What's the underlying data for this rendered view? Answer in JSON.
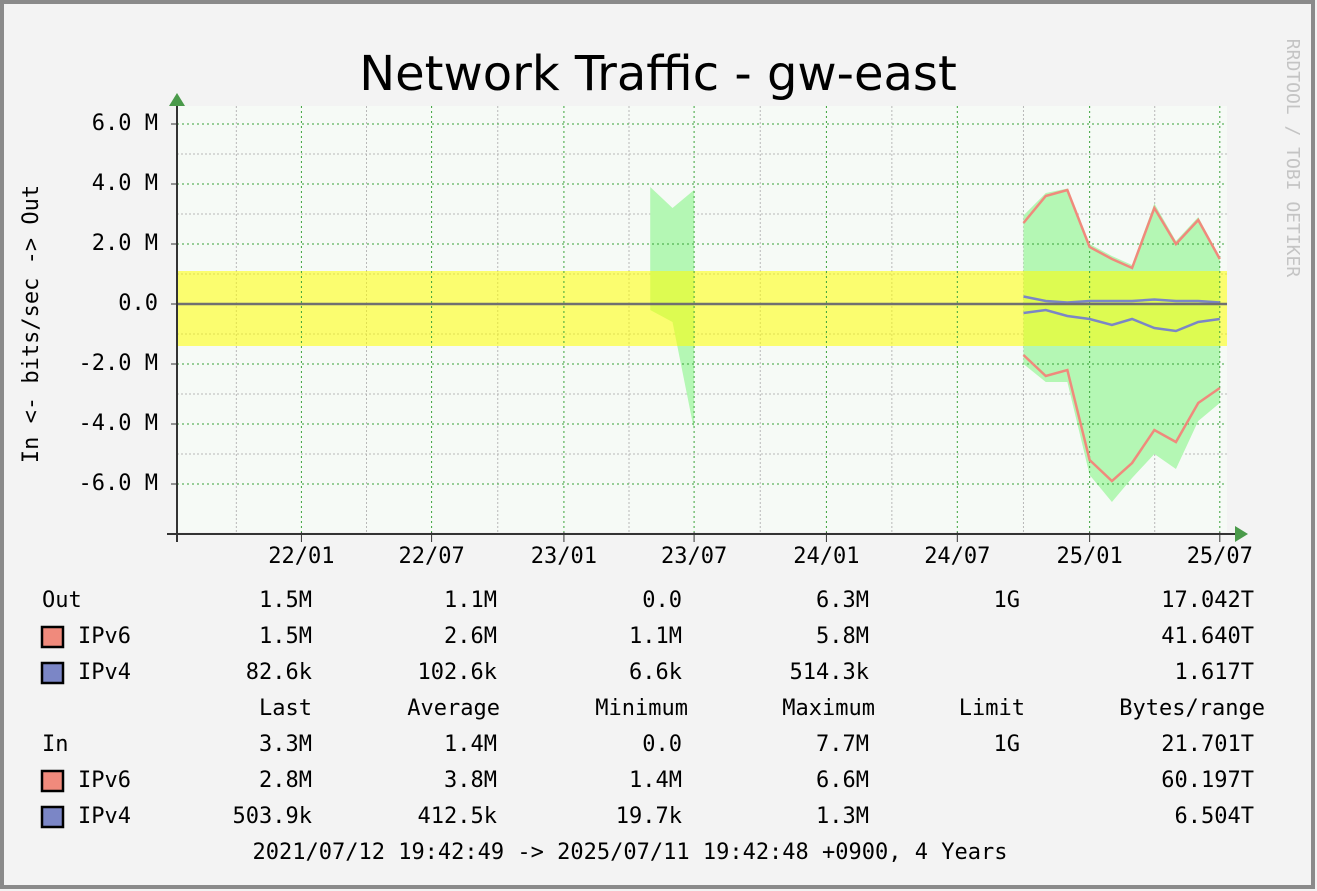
{
  "chart_data": {
    "type": "line",
    "title": "Network Traffic - gw-east",
    "y_label": "In <- bits/sec -> Out",
    "watermark": "RRDTOOL / TOBI OETIKER",
    "x": [
      "23/05",
      "23/06",
      "23/07",
      "24/09",
      "24/10",
      "24/11",
      "24/12",
      "25/01",
      "25/02",
      "25/03",
      "25/04",
      "25/05",
      "25/06",
      "25/07"
    ],
    "xlim": [
      "2021-07-12",
      "2025-07-11"
    ],
    "xticks": [
      "22/01",
      "22/07",
      "23/01",
      "23/07",
      "24/01",
      "24/07",
      "25/01",
      "25/07"
    ],
    "ylim": [
      -7.6,
      6.6
    ],
    "yticks": [
      {
        "value": 6,
        "label": "6.0 M"
      },
      {
        "value": 4,
        "label": "4.0 M"
      },
      {
        "value": 2,
        "label": "2.0 M"
      },
      {
        "value": 0,
        "label": "0.0"
      },
      {
        "value": -2,
        "label": "-2.0 M"
      },
      {
        "value": -4,
        "label": "-4.0 M"
      },
      {
        "value": -6,
        "label": "-6.0 M"
      }
    ],
    "grid": true,
    "average_band": {
      "values": [
        -1.4,
        1.1
      ],
      "color": "#ffff00"
    },
    "series": [
      {
        "name": "IPv6",
        "kind": "line",
        "color": "#f08a7c",
        "values": [
          null,
          null,
          null,
          null,
          2.7,
          3.6,
          3.8,
          1.9,
          1.5,
          1.2,
          3.2,
          2.0,
          2.8,
          1.5
        ]
      },
      {
        "name": "IPv4",
        "kind": "line",
        "color": "#7b86c6",
        "values": [
          null,
          null,
          null,
          null,
          0.25,
          0.1,
          0.05,
          0.1,
          0.1,
          0.1,
          0.15,
          0.1,
          0.1,
          0.05
        ]
      },
      {
        "name": "IPv6",
        "kind": "line",
        "color": "#f08a7c",
        "values": [
          null,
          null,
          null,
          null,
          -1.7,
          -2.4,
          -2.2,
          -5.2,
          -5.9,
          -5.3,
          -4.2,
          -4.6,
          -3.3,
          -2.8
        ]
      },
      {
        "name": "IPv4",
        "kind": "line",
        "color": "#7b86c6",
        "values": [
          null,
          null,
          null,
          null,
          -0.3,
          -0.2,
          -0.4,
          -0.5,
          -0.7,
          -0.5,
          -0.8,
          -0.9,
          -0.6,
          -0.5
        ]
      },
      {
        "name": "Out",
        "kind": "area",
        "color": "#b4f7b4",
        "values": [
          3.9,
          3.2,
          3.8,
          null,
          2.95,
          3.7,
          3.85,
          2.0,
          1.6,
          1.3,
          3.35,
          2.1,
          2.9,
          1.55
        ]
      },
      {
        "name": "In",
        "kind": "area",
        "color": "#b4f7b4",
        "values": [
          -0.2,
          -0.6,
          -4.2,
          null,
          -2.0,
          -2.6,
          -2.6,
          -5.7,
          -6.6,
          -5.8,
          -5.0,
          -5.5,
          -3.9,
          -3.3
        ]
      }
    ]
  },
  "legend_table": {
    "columns": [
      "Last",
      "Average",
      "Minimum",
      "Maximum",
      "Limit",
      "Bytes/range"
    ],
    "rows": [
      [
        "1.5M",
        "1.1M",
        "0.0",
        "6.3M",
        "1G",
        "17.042T"
      ],
      [
        "1.5M",
        "2.6M",
        "1.1M",
        "5.8M",
        null,
        "41.640T"
      ],
      [
        "82.6k",
        "102.6k",
        "6.6k",
        "514.3k",
        null,
        "1.617T"
      ],
      [
        "3.3M",
        "1.4M",
        "0.0",
        "7.7M",
        "1G",
        "21.701T"
      ],
      [
        "2.8M",
        "3.8M",
        "1.4M",
        "6.6M",
        null,
        "60.197T"
      ],
      [
        "503.9k",
        "412.5k",
        "19.7k",
        "1.3M",
        null,
        "6.504T"
      ]
    ],
    "footer": "2021/07/12 19:42:49 -> 2025/07/11 19:42:48 +0900, 4 Years"
  }
}
